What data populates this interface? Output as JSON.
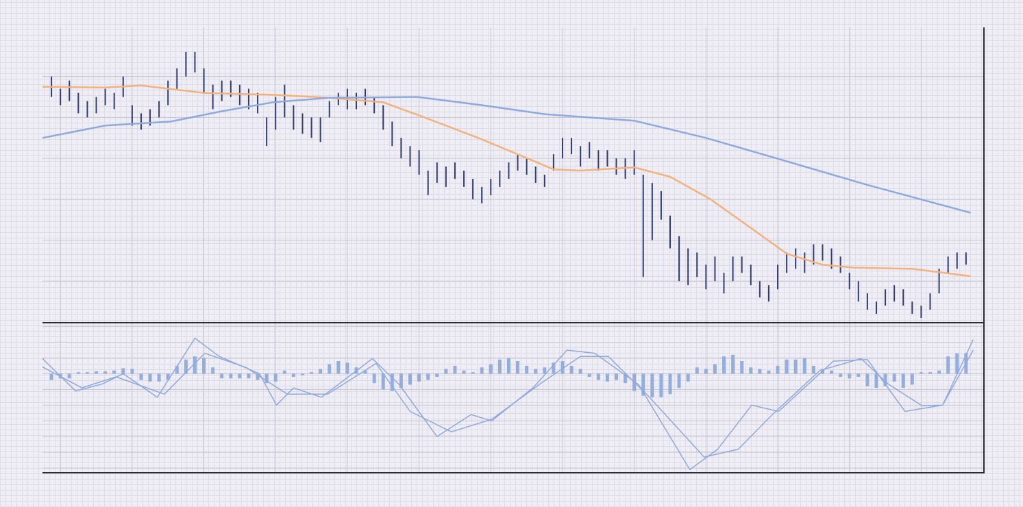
{
  "chart_data": [
    {
      "type": "ohlc",
      "x": [
        -1,
        0,
        1,
        2,
        3,
        4,
        5,
        6,
        7,
        8,
        9,
        10,
        11,
        12,
        13,
        14,
        15,
        16,
        17,
        18,
        19,
        20,
        21,
        22,
        23,
        24,
        25,
        26,
        27,
        28,
        29,
        30,
        31,
        32,
        33,
        34,
        35,
        36,
        37,
        38,
        39,
        40,
        41,
        42,
        43,
        44,
        45,
        46,
        47,
        48,
        49,
        50,
        51,
        52,
        53,
        54,
        55,
        56,
        57,
        58,
        59,
        60,
        61,
        62,
        63,
        64,
        65,
        66,
        67,
        68,
        69,
        70,
        71,
        72,
        73,
        74,
        75,
        76,
        77,
        78,
        79,
        80,
        81,
        82,
        83,
        84,
        85,
        86,
        87,
        88,
        89,
        90,
        91,
        92,
        93,
        94,
        95,
        96,
        97,
        98,
        99,
        100,
        101
      ],
      "low": [
        55,
        53,
        54,
        51,
        50,
        51,
        53,
        52,
        55,
        48,
        47,
        48,
        50,
        53,
        57,
        60,
        61,
        56,
        52,
        54,
        55,
        53,
        52,
        51,
        43,
        47,
        50,
        47,
        46,
        45,
        44,
        50,
        53,
        52,
        52,
        53,
        51,
        47,
        43,
        40,
        38,
        36,
        31,
        34,
        33,
        35,
        33,
        30,
        29,
        31,
        33,
        35,
        37,
        36,
        34,
        33,
        37,
        40,
        41,
        38,
        40,
        37,
        38,
        36,
        35,
        36,
        11,
        20,
        25,
        18,
        10,
        9,
        11,
        8,
        10,
        7,
        10,
        12,
        9,
        6,
        5,
        8,
        12,
        13,
        12,
        14,
        15,
        13,
        12,
        8,
        5,
        3,
        2,
        4,
        5,
        4,
        2,
        1,
        3,
        7,
        12,
        13,
        14
      ],
      "high": [
        60,
        57,
        59,
        56,
        54,
        55,
        57,
        56,
        60,
        53,
        51,
        52,
        54,
        59,
        62,
        66,
        66,
        62,
        58,
        59,
        59,
        58,
        57,
        56,
        50,
        55,
        58,
        53,
        51,
        50,
        50,
        54,
        56,
        57,
        56,
        57,
        55,
        53,
        49,
        45,
        43,
        42,
        37,
        39,
        38,
        39,
        37,
        35,
        33,
        35,
        37,
        39,
        41,
        40,
        38,
        36,
        41,
        45,
        45,
        43,
        44,
        42,
        42,
        40,
        40,
        42,
        36,
        34,
        32,
        26,
        21,
        18,
        17,
        14,
        16,
        12,
        16,
        16,
        14,
        10,
        9,
        14,
        17,
        18,
        17,
        19,
        19,
        18,
        16,
        12,
        10,
        7,
        5,
        8,
        9,
        8,
        5,
        4,
        7,
        13,
        16,
        17,
        17
      ],
      "color": "#2f3d73",
      "lines": [
        {
          "color": "#f3b27c",
          "x": [
            -2,
            5,
            9,
            16,
            24,
            30,
            36,
            40,
            46.6,
            51,
            55,
            58,
            64,
            68,
            72.5,
            77,
            81,
            85,
            88.5,
            95,
            101.5
          ],
          "values": [
            57.5,
            57.3,
            57.8,
            56,
            55.5,
            54.8,
            53.7,
            50.5,
            45,
            41,
            37.3,
            37,
            37.8,
            35.5,
            30,
            23,
            16.7,
            14,
            13.3,
            13,
            11.2
          ]
        },
        {
          "color": "#8ea9de",
          "x": [
            -2,
            5,
            12.3,
            18,
            23.7,
            30,
            39.8,
            47,
            54,
            64,
            72,
            79.4,
            90,
            101.5
          ],
          "values": [
            45,
            48,
            49,
            51.5,
            53.7,
            54.8,
            55,
            53,
            50.8,
            49.2,
            45,
            40.3,
            33.5,
            26.7
          ]
        }
      ],
      "xlim": [
        -2,
        103
      ],
      "xticks": [
        0,
        8,
        16,
        24,
        32,
        40,
        48,
        56,
        64,
        72,
        80,
        88,
        96
      ],
      "ylim": [
        0,
        72
      ],
      "yticks": [
        10,
        20,
        30,
        40,
        50,
        60
      ],
      "grid": true
    },
    {
      "type": "macd",
      "x": [
        -1,
        0,
        1,
        2,
        3,
        4,
        5,
        6,
        7,
        8,
        9,
        10,
        11,
        12,
        13,
        14,
        15,
        16,
        17,
        18,
        19,
        20,
        21,
        22,
        23,
        24,
        25,
        26,
        27,
        28,
        29,
        30,
        31,
        32,
        33,
        34,
        35,
        36,
        37,
        38,
        39,
        40,
        41,
        42,
        43,
        44,
        45,
        46,
        47,
        48,
        49,
        50,
        51,
        52,
        53,
        54,
        55,
        56,
        57,
        58,
        59,
        60,
        61,
        62,
        63,
        64,
        65,
        66,
        67,
        68,
        69,
        70,
        71,
        72,
        73,
        74,
        75,
        76,
        77,
        78,
        79,
        80,
        81,
        82,
        83,
        84,
        85,
        86,
        87,
        88,
        89,
        90,
        91,
        92,
        93,
        94,
        95,
        96,
        97,
        98,
        99,
        100,
        101
      ],
      "values": [
        -0.4,
        -0.3,
        -0.3,
        0.1,
        0.1,
        0.15,
        0.15,
        0.2,
        0.35,
        0.3,
        -0.4,
        -0.5,
        -0.5,
        -0.4,
        0.5,
        0.9,
        1.1,
        1.0,
        0.4,
        -0.3,
        -0.3,
        -0.3,
        -0.3,
        -0.4,
        -0.6,
        -0.5,
        0.2,
        -0.2,
        -0.1,
        0.1,
        0.3,
        0.6,
        0.8,
        0.7,
        0.4,
        0.2,
        -0.6,
        -1.0,
        -1.1,
        -0.9,
        -0.7,
        -0.5,
        -0.4,
        -0.2,
        0.3,
        0.5,
        0.2,
        0.1,
        0.4,
        0.6,
        0.9,
        1.0,
        0.8,
        0.5,
        0.3,
        0.4,
        0.7,
        0.8,
        0.5,
        0.3,
        -0.2,
        -0.4,
        -0.5,
        -0.4,
        -0.6,
        -1.1,
        -1.4,
        -1.5,
        -1.5,
        -1.3,
        -0.9,
        -0.5,
        0.4,
        0.3,
        0.6,
        1.1,
        1.2,
        0.8,
        0.4,
        0.3,
        0.2,
        0.5,
        0.9,
        0.9,
        1.0,
        0.5,
        0.3,
        0.2,
        -0.2,
        -0.3,
        -0.2,
        -0.8,
        -0.9,
        -0.8,
        -0.5,
        -0.9,
        -0.7,
        0.1,
        0.1,
        0.2,
        1.1,
        1.3,
        1.3
      ],
      "color": "#93aedc",
      "lines": [
        {
          "color": "#8fa9dc",
          "x": [
            -2,
            1.7,
            4.7,
            7,
            10.8,
            15,
            17.7,
            22.2,
            24.1,
            26,
            29.1,
            34.8,
            37.8,
            42,
            45.8,
            48.1,
            52.7,
            56.5,
            59.6,
            64.5,
            70.2,
            73.3,
            77.1,
            80.1,
            86.2,
            90,
            94.2,
            98.4,
            101.8
          ],
          "values": [
            0.96,
            -1.1,
            -0.65,
            0,
            -1.5,
            2.26,
            1.1,
            0,
            -2,
            -0.9,
            -1.5,
            0.96,
            -0.7,
            -4,
            -2.6,
            -3,
            -0.9,
            1.5,
            1.3,
            -0.7,
            -6.1,
            -4.8,
            -2,
            -2.4,
            0.8,
            0.9,
            -2.4,
            -2,
            1.5
          ]
        },
        {
          "color": "#8fa9dc",
          "x": [
            -2,
            2.4,
            6.2,
            11.6,
            16.1,
            20.7,
            25.3,
            29.8,
            35.2,
            39,
            43.6,
            48.1,
            53.5,
            58,
            61.1,
            65.7,
            71.8,
            75.6,
            79.4,
            84.7,
            89.3,
            92.3,
            96.1,
            98.4,
            101.8
          ],
          "values": [
            0.43,
            -0.9,
            -0.2,
            -1.3,
            1.3,
            0.4,
            -1.3,
            -1.3,
            0.65,
            -2.4,
            -3.7,
            -2.9,
            -0.65,
            1.1,
            1.1,
            -1.5,
            -5.3,
            -4.8,
            -2.6,
            0.2,
            0.96,
            -0.65,
            -2.04,
            -2,
            2.17
          ]
        }
      ],
      "xlim": [
        -2,
        103
      ],
      "xticks": [
        0,
        8,
        16,
        24,
        32,
        40,
        48,
        56,
        64,
        72,
        80,
        88,
        96
      ],
      "ylim": [
        -6.3,
        3.2
      ],
      "yticks": [
        -6,
        -5,
        -4,
        -3,
        -2,
        -1,
        0,
        1,
        2,
        3
      ],
      "grid": true
    }
  ]
}
